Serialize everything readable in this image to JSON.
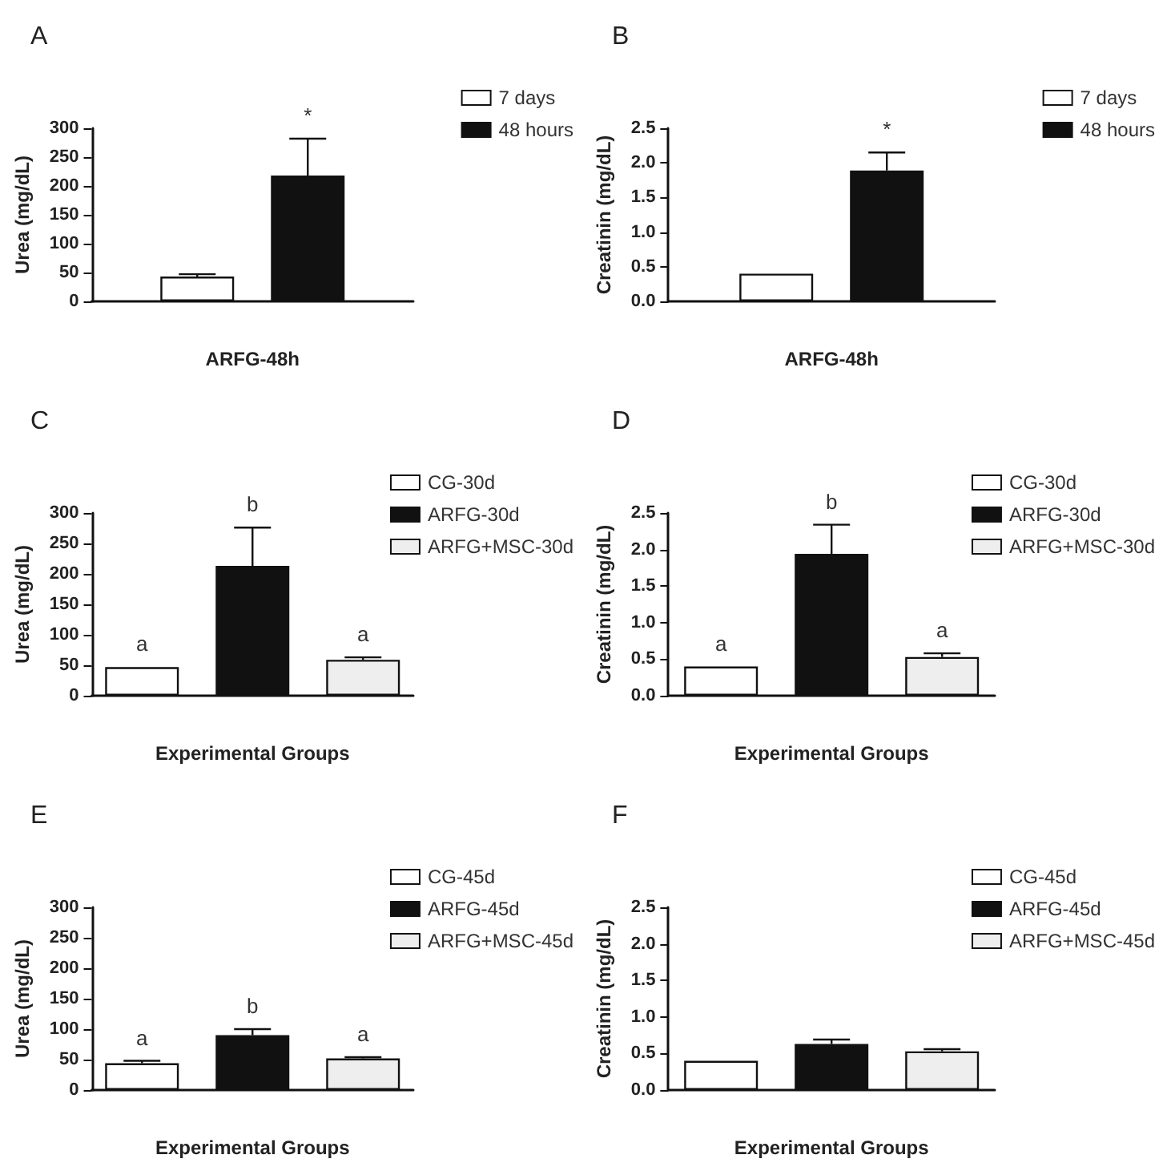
{
  "chart_data": [
    {
      "type": "bar",
      "title": "A",
      "xlabel": "ARFG-48h",
      "ylabel": "Urea (mg/dL)",
      "categories": [
        null
      ],
      "ylim": [
        0,
        300
      ],
      "yticks": [
        0,
        50,
        100,
        150,
        200,
        250,
        300
      ],
      "grid": false,
      "legend": "right",
      "series": [
        {
          "name": "7 days",
          "color": "#ffffff",
          "values": [
            43
          ],
          "errors": [
            [
              43,
              47
            ]
          ]
        },
        {
          "name": "48 hours",
          "color": "#111111",
          "values": [
            218
          ],
          "errors": [
            [
              218,
              282
            ]
          ]
        }
      ],
      "annotations": [
        {
          "text": "*",
          "y": 282
        }
      ]
    },
    {
      "type": "bar",
      "title": "B",
      "xlabel": "ARFG-48h",
      "ylabel": "Creatinin (mg/dL)",
      "categories": [
        null
      ],
      "ylim": [
        0,
        2.5
      ],
      "yticks": [
        {
          "value": 0,
          "label": "0.0"
        },
        {
          "value": 0.5,
          "label": "0.5"
        },
        {
          "value": 1,
          "label": "1.0"
        },
        {
          "value": 1.5,
          "label": "1.5"
        },
        {
          "value": 2,
          "label": "2.0"
        },
        {
          "value": 2.5,
          "label": "2.5"
        }
      ],
      "grid": false,
      "legend": "right",
      "series": [
        {
          "name": "7 days",
          "color": "#ffffff",
          "values": [
            0.4
          ]
        },
        {
          "name": "48 hours",
          "color": "#111111",
          "values": [
            1.89
          ],
          "errors": [
            [
              1.89,
              2.15
            ]
          ]
        }
      ],
      "annotations": [
        {
          "text": "*",
          "y": 2.15
        }
      ]
    },
    {
      "type": "bar",
      "title": "C",
      "xlabel": "Experimental Groups",
      "ylabel": "Urea (mg/dL)",
      "categories": [
        null
      ],
      "ylim": [
        0,
        300
      ],
      "yticks": [
        0,
        50,
        100,
        150,
        200,
        250,
        300
      ],
      "grid": false,
      "legend": "right",
      "series": [
        {
          "name": "CG-30d",
          "color": "#ffffff",
          "values": [
            47
          ]
        },
        {
          "name": "ARFG-30d",
          "color": "#111111",
          "values": [
            213
          ],
          "errors": [
            [
              213,
              276
            ]
          ]
        },
        {
          "name": "ARFG+MSC-30d",
          "color": "#eeeeee",
          "values": [
            59
          ],
          "errors": [
            [
              59,
              63
            ]
          ]
        }
      ],
      "annotations": [
        {
          "text": "a",
          "y": 47
        },
        {
          "text": "b",
          "y": 276
        },
        {
          "text": "a",
          "y": 63
        }
      ]
    },
    {
      "type": "bar",
      "title": "D",
      "xlabel": "Experimental Groups",
      "ylabel": "Creatinin (mg/dL)",
      "categories": [
        null
      ],
      "ylim": [
        0,
        2.5
      ],
      "yticks": [
        {
          "value": 0,
          "label": "0.0"
        },
        {
          "value": 0.5,
          "label": "0.5"
        },
        {
          "value": 1,
          "label": "1.0"
        },
        {
          "value": 1.5,
          "label": "1.5"
        },
        {
          "value": 2,
          "label": "2.0"
        },
        {
          "value": 2.5,
          "label": "2.5"
        }
      ],
      "grid": false,
      "legend": "right",
      "series": [
        {
          "name": "CG-30d",
          "color": "#ffffff",
          "values": [
            0.4
          ]
        },
        {
          "name": "ARFG-30d",
          "color": "#111111",
          "values": [
            1.94
          ],
          "errors": [
            [
              1.94,
              2.34
            ]
          ]
        },
        {
          "name": "ARFG+MSC-30d",
          "color": "#eeeeee",
          "values": [
            0.53
          ],
          "errors": [
            [
              0.53,
              0.58
            ]
          ]
        }
      ],
      "annotations": [
        {
          "text": "a",
          "y": 0.4
        },
        {
          "text": "b",
          "y": 2.34
        },
        {
          "text": "a",
          "y": 0.58
        }
      ]
    },
    {
      "type": "bar",
      "title": "E",
      "xlabel": "Experimental Groups",
      "ylabel": "Urea (mg/dL)",
      "categories": [
        null
      ],
      "ylim": [
        0,
        300
      ],
      "yticks": [
        0,
        50,
        100,
        150,
        200,
        250,
        300
      ],
      "grid": false,
      "legend": "right",
      "series": [
        {
          "name": "CG-45d",
          "color": "#ffffff",
          "values": [
            44
          ],
          "errors": [
            [
              44,
              48
            ]
          ]
        },
        {
          "name": "ARFG-45d",
          "color": "#111111",
          "values": [
            90
          ],
          "errors": [
            [
              90,
              100
            ]
          ]
        },
        {
          "name": "ARFG+MSC-45d",
          "color": "#eeeeee",
          "values": [
            52
          ],
          "errors": [
            [
              52,
              54
            ]
          ]
        }
      ],
      "annotations": [
        {
          "text": "a",
          "y": 48
        },
        {
          "text": "b",
          "y": 100
        },
        {
          "text": "a",
          "y": 54
        }
      ]
    },
    {
      "type": "bar",
      "title": "F",
      "xlabel": "Experimental Groups",
      "ylabel": "Creatinin (mg/dL)",
      "categories": [
        null
      ],
      "ylim": [
        0,
        2.5
      ],
      "yticks": [
        {
          "value": 0,
          "label": "0.0"
        },
        {
          "value": 0.5,
          "label": "0.5"
        },
        {
          "value": 1,
          "label": "1.0"
        },
        {
          "value": 1.5,
          "label": "1.5"
        },
        {
          "value": 2,
          "label": "2.0"
        },
        {
          "value": 2.5,
          "label": "2.5"
        }
      ],
      "grid": false,
      "legend": "right",
      "series": [
        {
          "name": "CG-45d",
          "color": "#ffffff",
          "values": [
            0.4
          ]
        },
        {
          "name": "ARFG-45d",
          "color": "#111111",
          "values": [
            0.63
          ],
          "errors": [
            [
              0.63,
              0.69
            ]
          ]
        },
        {
          "name": "ARFG+MSC-45d",
          "color": "#eeeeee",
          "values": [
            0.53
          ],
          "errors": [
            [
              0.53,
              0.56
            ]
          ]
        }
      ]
    }
  ]
}
